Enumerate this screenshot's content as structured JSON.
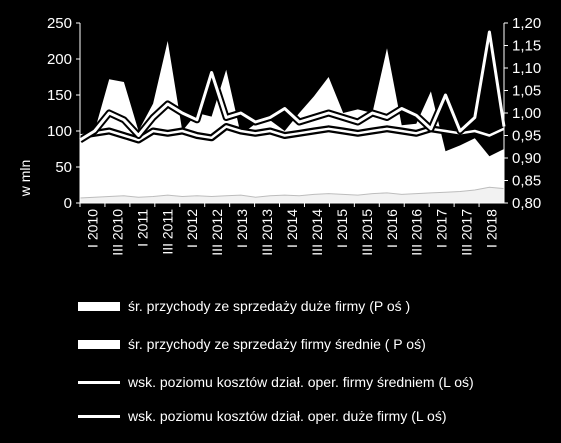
{
  "chart_data": {
    "type": "area",
    "ylabel_left": "w mln",
    "ylim_left": [
      0,
      250
    ],
    "yticks_left": [
      "0",
      "50",
      "100",
      "150",
      "200",
      "250"
    ],
    "ylim_right": [
      0.8,
      1.2
    ],
    "yticks_right": [
      "0,80",
      "0,85",
      "0,90",
      "0,95",
      "1,00",
      "1,05",
      "1,10",
      "1,15",
      "1,20"
    ],
    "x_tick_labels": [
      "I 2010",
      "III 2010",
      "I 2011",
      "III 2011",
      "I 2012",
      "III 2012",
      "I 2013",
      "III 2013",
      "I 2014",
      "III 2014",
      "I 2015",
      "III 2015",
      "I 2016",
      "III 2016",
      "I 2017",
      "III 2017",
      "I 2018"
    ],
    "series": [
      {
        "name": "śr. przychody  ze sprzedaży duże firmy (P oś )",
        "axis": "left",
        "kind": "area",
        "values": [
          85,
          100,
          172,
          168,
          100,
          138,
          225,
          100,
          125,
          120,
          185,
          95,
          110,
          115,
          100,
          125,
          148,
          175,
          125,
          130,
          125,
          215,
          108,
          110,
          155,
          72,
          80,
          90,
          65,
          75
        ]
      },
      {
        "name": "śr. przychody ze sprzedaży firmy średnie ( P oś)",
        "axis": "left",
        "kind": "area",
        "values": [
          7,
          8,
          9,
          10,
          8,
          9,
          11,
          9,
          10,
          9,
          10,
          11,
          8,
          10,
          11,
          10,
          12,
          13,
          12,
          11,
          13,
          14,
          12,
          13,
          14,
          15,
          16,
          18,
          22,
          20
        ]
      },
      {
        "name": "wsk. poziomu kosztów dział. oper. firmy średniem (L oś)",
        "axis": "right",
        "kind": "line",
        "values": [
          0.95,
          0.955,
          0.96,
          0.95,
          0.94,
          0.96,
          0.955,
          0.96,
          0.95,
          0.945,
          0.97,
          0.96,
          0.955,
          0.96,
          0.95,
          0.955,
          0.96,
          0.965,
          0.96,
          0.955,
          0.96,
          0.965,
          0.96,
          0.955,
          0.965,
          0.96,
          0.955,
          0.96,
          0.95,
          0.965
        ]
      },
      {
        "name": "wsk. poziomu kosztów dział. oper. duże firmy (L oś)",
        "axis": "right",
        "kind": "line",
        "values": [
          0.94,
          0.96,
          1.0,
          0.985,
          0.95,
          0.99,
          1.02,
          1.0,
          0.985,
          1.09,
          0.99,
          1.0,
          0.98,
          0.99,
          1.01,
          0.98,
          0.99,
          1.0,
          0.99,
          0.98,
          1.0,
          0.99,
          1.01,
          0.995,
          0.965,
          1.04,
          0.96,
          0.99,
          1.18,
          0.97
        ]
      }
    ],
    "legend_position": "bottom",
    "grid": false
  }
}
